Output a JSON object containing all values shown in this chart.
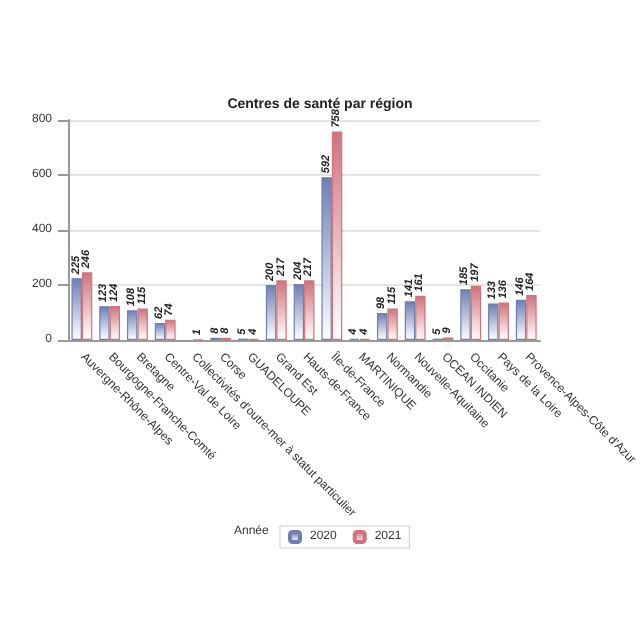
{
  "chart_data": {
    "type": "bar",
    "title": "Centres de santé par région",
    "legend_title": "Année",
    "categories": [
      "Auvergne-Rhône-Alpes",
      "Bourgogne-Franche-Comté",
      "Bretagne",
      "Centre-Val de Loire",
      "Collectivités d'outre-mer à statut particulier",
      "Corse",
      "GUADELOUPE",
      "Grand Est",
      "Hauts-de-France",
      "Île-de-France",
      "MARTINIQUE",
      "Normandie",
      "Nouvelle-Aquitaine",
      "OCEAN INDIEN",
      "Occitanie",
      "Pays de la Loire",
      "Provence-Alpes-Côte d'Azur"
    ],
    "series": [
      {
        "name": "2020",
        "color": "#6f7fb3",
        "values": [
          225,
          123,
          108,
          62,
          null,
          8,
          5,
          200,
          204,
          592,
          4,
          98,
          141,
          5,
          185,
          133,
          146
        ]
      },
      {
        "name": "2021",
        "color": "#d0737c",
        "values": [
          246,
          124,
          115,
          74,
          1,
          8,
          4,
          217,
          217,
          758,
          4,
          115,
          161,
          9,
          197,
          136,
          164
        ]
      }
    ],
    "ylim": [
      0,
      800
    ],
    "yticks": [
      0,
      200,
      400,
      600,
      800
    ],
    "grid": "y",
    "legend": "bottom",
    "data_labels": true
  }
}
